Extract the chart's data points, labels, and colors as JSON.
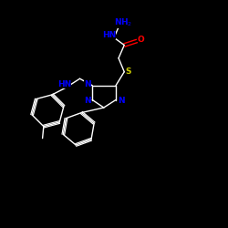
{
  "background_color": "#000000",
  "bond_color": "#ffffff",
  "N_color": "#0000ff",
  "O_color": "#ff0000",
  "S_color": "#cccc00",
  "figsize": [
    2.5,
    2.5
  ],
  "dpi": 100,
  "xlim": [
    0,
    10
  ],
  "ylim": [
    0,
    10
  ]
}
